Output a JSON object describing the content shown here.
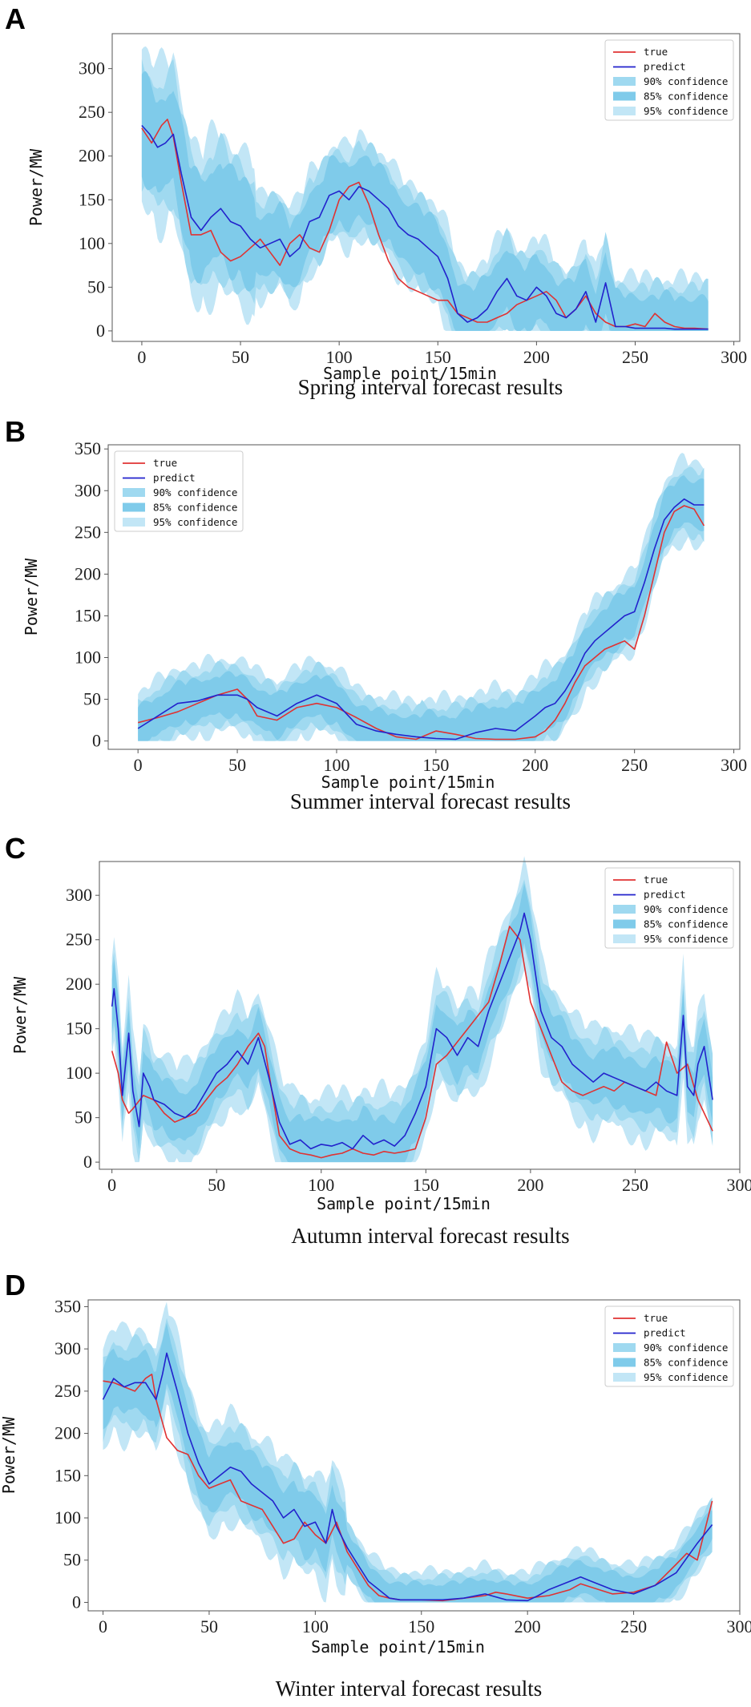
{
  "figure_labels": [
    "A",
    "B",
    "C",
    "D"
  ],
  "legend_labels": [
    "true",
    "predict",
    "90% confidence",
    "85% confidence",
    "95% confidence"
  ],
  "colors": {
    "true": "#e03232",
    "predict": "#2222cc",
    "band95": "#c2e6f6",
    "band90": "#9fd9f0",
    "band85": "#7fcbea",
    "frame": "#555555"
  },
  "chart_data": [
    {
      "type": "line",
      "label": "A",
      "caption": "Spring interval forecast results",
      "xlabel": "Sample point/15min",
      "ylabel": "Power/MW",
      "xlim": [
        -15,
        303
      ],
      "ylim": [
        -12,
        340
      ],
      "xticks": [
        0,
        50,
        100,
        150,
        200,
        250,
        300
      ],
      "yticks": [
        0,
        50,
        100,
        150,
        200,
        250,
        300
      ],
      "legend_position": "top-right",
      "series": [
        {
          "name": "true",
          "x": [
            0,
            5,
            10,
            13,
            16,
            20,
            25,
            30,
            35,
            40,
            45,
            50,
            55,
            60,
            65,
            70,
            75,
            80,
            85,
            90,
            95,
            100,
            105,
            110,
            115,
            120,
            125,
            130,
            135,
            140,
            145,
            150,
            155,
            160,
            165,
            170,
            175,
            180,
            185,
            190,
            195,
            200,
            205,
            210,
            215,
            220,
            225,
            230,
            235,
            240,
            245,
            250,
            255,
            260,
            265,
            270,
            275,
            280,
            287
          ],
          "values": [
            232,
            215,
            235,
            242,
            222,
            170,
            110,
            110,
            115,
            90,
            80,
            85,
            95,
            105,
            90,
            75,
            100,
            110,
            95,
            90,
            115,
            150,
            165,
            170,
            145,
            110,
            80,
            60,
            50,
            45,
            40,
            35,
            35,
            20,
            15,
            10,
            10,
            15,
            20,
            30,
            35,
            40,
            45,
            35,
            15,
            25,
            40,
            20,
            10,
            5,
            5,
            8,
            5,
            20,
            10,
            5,
            3,
            3,
            2
          ]
        },
        {
          "name": "predict",
          "x": [
            0,
            4,
            8,
            12,
            16,
            20,
            25,
            30,
            35,
            40,
            45,
            50,
            55,
            60,
            65,
            70,
            75,
            80,
            85,
            90,
            95,
            100,
            105,
            110,
            115,
            120,
            125,
            130,
            135,
            140,
            145,
            150,
            155,
            160,
            165,
            170,
            175,
            180,
            185,
            190,
            195,
            200,
            205,
            210,
            215,
            220,
            225,
            230,
            235,
            240,
            245,
            250,
            255,
            260,
            265,
            270,
            275,
            280,
            287
          ],
          "values": [
            235,
            225,
            210,
            215,
            225,
            180,
            130,
            115,
            130,
            140,
            125,
            120,
            105,
            95,
            100,
            105,
            85,
            95,
            125,
            130,
            155,
            160,
            150,
            165,
            160,
            150,
            140,
            120,
            110,
            105,
            95,
            85,
            60,
            20,
            10,
            15,
            25,
            45,
            60,
            40,
            35,
            50,
            40,
            20,
            15,
            25,
            45,
            10,
            55,
            5,
            5,
            3,
            3,
            3,
            3,
            2,
            2,
            2,
            2
          ]
        }
      ],
      "band_halfwidths": {
        "95%": [
          95,
          60
        ],
        "90%": [
          75,
          50
        ],
        "85%": [
          58,
          38
        ]
      },
      "band_split_x": 0.2
    },
    {
      "type": "line",
      "label": "B",
      "caption": "Summer interval forecast results",
      "xlabel": "Sample point/15min",
      "ylabel": "Power/MW",
      "xlim": [
        -15,
        303
      ],
      "ylim": [
        -10,
        355
      ],
      "xticks": [
        0,
        50,
        100,
        150,
        200,
        250,
        300
      ],
      "yticks": [
        0,
        50,
        100,
        150,
        200,
        250,
        300,
        350
      ],
      "legend_position": "top-left",
      "series": [
        {
          "name": "true",
          "x": [
            0,
            10,
            20,
            30,
            40,
            50,
            55,
            60,
            70,
            80,
            90,
            100,
            110,
            120,
            130,
            140,
            150,
            160,
            170,
            180,
            190,
            200,
            205,
            210,
            215,
            220,
            225,
            230,
            235,
            240,
            245,
            250,
            255,
            260,
            265,
            270,
            275,
            280,
            285
          ],
          "values": [
            22,
            28,
            35,
            45,
            55,
            62,
            50,
            30,
            25,
            40,
            45,
            40,
            28,
            15,
            5,
            2,
            12,
            8,
            3,
            2,
            2,
            5,
            12,
            25,
            45,
            70,
            90,
            100,
            110,
            115,
            120,
            110,
            150,
            200,
            250,
            275,
            282,
            278,
            258
          ]
        },
        {
          "name": "predict",
          "x": [
            0,
            10,
            20,
            30,
            40,
            50,
            55,
            60,
            70,
            80,
            90,
            100,
            110,
            120,
            130,
            140,
            150,
            160,
            170,
            180,
            190,
            200,
            205,
            210,
            215,
            220,
            225,
            230,
            235,
            240,
            245,
            250,
            255,
            260,
            265,
            270,
            275,
            280,
            285
          ],
          "values": [
            15,
            30,
            45,
            48,
            55,
            55,
            50,
            40,
            30,
            45,
            55,
            45,
            20,
            12,
            8,
            5,
            3,
            2,
            10,
            15,
            12,
            30,
            40,
            45,
            60,
            80,
            105,
            120,
            130,
            140,
            150,
            155,
            190,
            230,
            265,
            280,
            290,
            283,
            283
          ]
        }
      ],
      "band_halfwidths": {
        "95%": [
          45,
          50
        ],
        "90%": [
          35,
          40
        ],
        "85%": [
          25,
          30
        ]
      },
      "band_split_x": 0.5
    },
    {
      "type": "line",
      "label": "C",
      "caption": "Autumn interval forecast results",
      "xlabel": "Sample point/15min",
      "ylabel": "Power/MW",
      "xlim": [
        -6,
        300
      ],
      "ylim": [
        -8,
        338
      ],
      "xticks": [
        0,
        50,
        100,
        150,
        200,
        250,
        300
      ],
      "yticks": [
        0,
        50,
        100,
        150,
        200,
        250,
        300
      ],
      "legend_position": "top-right",
      "series": [
        {
          "name": "true",
          "x": [
            0,
            3,
            5,
            8,
            10,
            15,
            20,
            25,
            30,
            35,
            40,
            45,
            50,
            55,
            60,
            65,
            70,
            73,
            75,
            80,
            85,
            90,
            95,
            100,
            105,
            110,
            115,
            120,
            125,
            130,
            135,
            140,
            145,
            150,
            155,
            160,
            165,
            170,
            175,
            180,
            185,
            190,
            195,
            200,
            205,
            210,
            215,
            220,
            225,
            230,
            235,
            240,
            245,
            250,
            255,
            260,
            265,
            270,
            275,
            280,
            287
          ],
          "values": [
            125,
            100,
            70,
            55,
            60,
            75,
            70,
            55,
            45,
            50,
            55,
            70,
            85,
            95,
            110,
            130,
            145,
            130,
            100,
            30,
            15,
            10,
            8,
            5,
            8,
            10,
            15,
            10,
            8,
            12,
            10,
            12,
            15,
            50,
            110,
            120,
            135,
            150,
            165,
            180,
            220,
            265,
            250,
            180,
            150,
            120,
            90,
            80,
            75,
            80,
            85,
            80,
            90,
            85,
            80,
            75,
            135,
            100,
            110,
            70,
            35
          ]
        },
        {
          "name": "predict",
          "x": [
            0,
            1,
            3,
            5,
            8,
            10,
            13,
            15,
            18,
            20,
            25,
            30,
            35,
            40,
            45,
            50,
            55,
            60,
            65,
            70,
            75,
            80,
            85,
            90,
            95,
            100,
            105,
            110,
            115,
            120,
            125,
            130,
            135,
            140,
            145,
            150,
            155,
            160,
            165,
            170,
            175,
            180,
            185,
            190,
            195,
            197,
            200,
            205,
            210,
            215,
            220,
            225,
            230,
            235,
            240,
            245,
            250,
            255,
            260,
            265,
            270,
            273,
            275,
            278,
            280,
            283,
            287
          ],
          "values": [
            175,
            195,
            150,
            75,
            145,
            80,
            40,
            100,
            85,
            70,
            65,
            55,
            50,
            60,
            80,
            100,
            110,
            125,
            110,
            140,
            95,
            45,
            20,
            25,
            15,
            20,
            18,
            22,
            15,
            30,
            20,
            25,
            18,
            30,
            55,
            85,
            150,
            140,
            120,
            140,
            130,
            170,
            200,
            230,
            260,
            280,
            250,
            170,
            140,
            130,
            110,
            100,
            90,
            100,
            95,
            90,
            85,
            80,
            90,
            80,
            75,
            165,
            85,
            75,
            110,
            130,
            70
          ]
        }
      ],
      "band_halfwidths": {
        "95%": [
          60,
          60
        ],
        "90%": [
          45,
          45
        ],
        "85%": [
          30,
          30
        ]
      },
      "band_split_x": 0.5
    },
    {
      "type": "line",
      "label": "D",
      "caption": "Winter interval forecast results",
      "xlabel": "Sample point/15min",
      "ylabel": "Power/MW",
      "xlim": [
        -7,
        300
      ],
      "ylim": [
        -10,
        358
      ],
      "xticks": [
        0,
        50,
        100,
        150,
        200,
        250,
        300
      ],
      "yticks": [
        0,
        50,
        100,
        150,
        200,
        250,
        300,
        350
      ],
      "legend_position": "top-right",
      "series": [
        {
          "name": "true",
          "x": [
            0,
            5,
            10,
            15,
            20,
            23,
            25,
            30,
            35,
            40,
            45,
            50,
            55,
            60,
            65,
            70,
            75,
            80,
            85,
            90,
            95,
            100,
            105,
            110,
            115,
            120,
            125,
            130,
            135,
            140,
            150,
            160,
            170,
            180,
            185,
            190,
            200,
            210,
            220,
            225,
            230,
            240,
            250,
            260,
            270,
            275,
            280,
            287
          ],
          "values": [
            262,
            260,
            255,
            250,
            265,
            270,
            240,
            195,
            180,
            175,
            150,
            135,
            140,
            145,
            120,
            115,
            110,
            90,
            70,
            75,
            95,
            80,
            70,
            95,
            60,
            40,
            20,
            8,
            5,
            3,
            3,
            2,
            5,
            8,
            12,
            10,
            5,
            8,
            15,
            22,
            18,
            10,
            12,
            20,
            45,
            58,
            50,
            120
          ]
        },
        {
          "name": "predict",
          "x": [
            0,
            5,
            10,
            15,
            20,
            25,
            28,
            30,
            35,
            40,
            45,
            50,
            55,
            60,
            65,
            70,
            75,
            80,
            85,
            90,
            95,
            100,
            105,
            108,
            110,
            115,
            120,
            125,
            130,
            135,
            140,
            150,
            160,
            170,
            180,
            190,
            200,
            205,
            210,
            220,
            225,
            230,
            240,
            250,
            260,
            270,
            280,
            287
          ],
          "values": [
            240,
            265,
            255,
            260,
            260,
            240,
            270,
            295,
            250,
            200,
            165,
            140,
            150,
            160,
            155,
            140,
            130,
            120,
            100,
            110,
            90,
            95,
            70,
            110,
            90,
            65,
            45,
            25,
            15,
            5,
            3,
            3,
            3,
            5,
            10,
            3,
            2,
            8,
            15,
            25,
            30,
            25,
            15,
            10,
            20,
            35,
            70,
            92
          ]
        }
      ],
      "band_halfwidths": {
        "95%": [
          65,
          35
        ],
        "90%": [
          50,
          28
        ],
        "85%": [
          35,
          20
        ]
      },
      "band_split_x": 0.4
    }
  ]
}
